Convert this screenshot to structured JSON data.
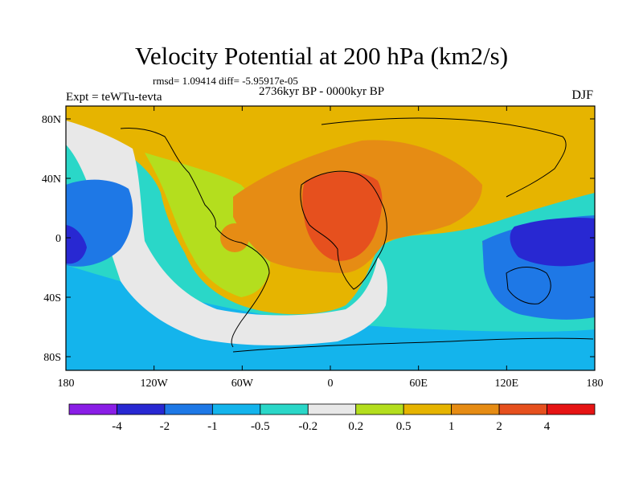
{
  "title": "Velocity Potential at 200 hPa (km2/s)",
  "stats": "rmsd= 1.09414 diff= -5.95917e-05",
  "expt": "Expt = teWTu-tevta",
  "period": "2736kyr BP - 0000kyr BP",
  "season": "DJF",
  "axes": {
    "lat_ticks": [
      "80N",
      "40N",
      "0",
      "40S",
      "80S"
    ],
    "lon_ticks": [
      "180",
      "120W",
      "60W",
      "0",
      "60E",
      "120E",
      "180"
    ]
  },
  "colorbar": {
    "labels": [
      "-4",
      "-2",
      "-1",
      "-0.5",
      "-0.2",
      "0.2",
      "0.5",
      "1",
      "2",
      "4"
    ],
    "colors": [
      "#8a1ee6",
      "#2828d2",
      "#1e78e6",
      "#14b4ec",
      "#2ad7c8",
      "#e8e8e8",
      "#b4de1e",
      "#e6b400",
      "#e68c14",
      "#e6501e",
      "#e61414"
    ]
  },
  "palette": {
    "purple": "#8a1ee6",
    "dark_blue": "#2828d2",
    "blue": "#1e78e6",
    "light_blue": "#14b4ec",
    "cyan": "#2ad7c8",
    "white": "#e8e8e8",
    "lime": "#b4de1e",
    "gold": "#e6b400",
    "orange": "#e68c14",
    "red_orange": "#e6501e",
    "red": "#e61414"
  }
}
